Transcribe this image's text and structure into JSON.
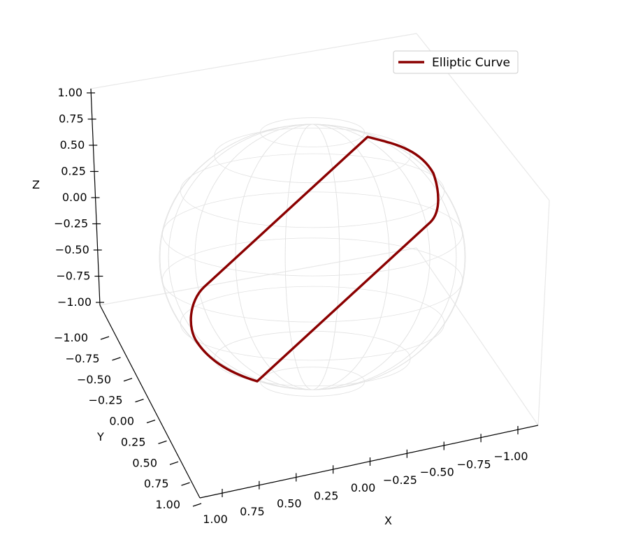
{
  "chart_data": {
    "type": "line",
    "projection": "3d",
    "title": "",
    "xlabel": "X",
    "ylabel": "Y",
    "zlabel": "Z",
    "xlim": [
      -1.0,
      1.0
    ],
    "ylim": [
      -1.0,
      1.0
    ],
    "zlim": [
      -1.0,
      1.0
    ],
    "x_ticks": [
      "1.00",
      "0.75",
      "0.50",
      "0.25",
      "0.00",
      "−0.25",
      "−0.50",
      "−0.75",
      "−1.00"
    ],
    "y_ticks": [
      "−1.00",
      "−0.75",
      "−0.50",
      "−0.25",
      "0.00",
      "0.25",
      "0.50",
      "0.75",
      "1.00"
    ],
    "z_ticks": [
      "1.00",
      "0.75",
      "0.50",
      "0.25",
      "0.00",
      "−0.25",
      "−0.50",
      "−0.75",
      "−1.00"
    ],
    "grid": false,
    "legend_position": "top-right",
    "surface": {
      "shape": "unit sphere wireframe",
      "color": "#e2e2e2"
    },
    "series": [
      {
        "name": "Elliptic Curve",
        "color": "#8b0000",
        "description_points": "closed stadium-shaped curve on sphere"
      }
    ]
  }
}
